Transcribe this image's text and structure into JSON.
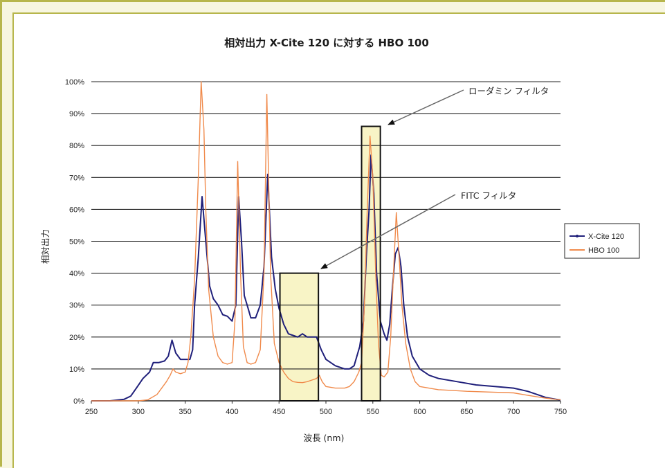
{
  "chart_data": {
    "type": "line",
    "title": "相対出力 X-Cite 120 に対する HBO 100",
    "xlabel": "波長 (nm)",
    "ylabel": "相対出力",
    "xlim": [
      250,
      750
    ],
    "ylim": [
      0,
      100
    ],
    "x_ticks": [
      "250",
      "300",
      "350",
      "400",
      "450",
      "500",
      "550",
      "600",
      "650",
      "700",
      "750"
    ],
    "y_ticks": [
      "0%",
      "10%",
      "20%",
      "30%",
      "40%",
      "50%",
      "60%",
      "70%",
      "80%",
      "90%",
      "100%"
    ],
    "grid": "horizontal",
    "legend_position": "right",
    "series": [
      {
        "name": "X-Cite 120",
        "color": "#1f1f7a",
        "points": [
          [
            250,
            0
          ],
          [
            270,
            0
          ],
          [
            285,
            0.5
          ],
          [
            292,
            1.5
          ],
          [
            298,
            4
          ],
          [
            305,
            7
          ],
          [
            312,
            9
          ],
          [
            316,
            12
          ],
          [
            322,
            12
          ],
          [
            328,
            12.5
          ],
          [
            332,
            14
          ],
          [
            336,
            19
          ],
          [
            340,
            15
          ],
          [
            345,
            13
          ],
          [
            350,
            13
          ],
          [
            355,
            13
          ],
          [
            358,
            16
          ],
          [
            360,
            30
          ],
          [
            364,
            45
          ],
          [
            368,
            64
          ],
          [
            372,
            50
          ],
          [
            376,
            36
          ],
          [
            380,
            32
          ],
          [
            385,
            30
          ],
          [
            390,
            27
          ],
          [
            395,
            26.5
          ],
          [
            400,
            25
          ],
          [
            404,
            30
          ],
          [
            407,
            64
          ],
          [
            410,
            50
          ],
          [
            413,
            33
          ],
          [
            417,
            29
          ],
          [
            420,
            26
          ],
          [
            425,
            26
          ],
          [
            430,
            30
          ],
          [
            434,
            42
          ],
          [
            438,
            71
          ],
          [
            442,
            45
          ],
          [
            446,
            35
          ],
          [
            450,
            29
          ],
          [
            455,
            24
          ],
          [
            460,
            21
          ],
          [
            465,
            20.5
          ],
          [
            470,
            20
          ],
          [
            475,
            21
          ],
          [
            480,
            20
          ],
          [
            485,
            20
          ],
          [
            490,
            20
          ],
          [
            495,
            16
          ],
          [
            500,
            13
          ],
          [
            505,
            12
          ],
          [
            510,
            11
          ],
          [
            515,
            10.5
          ],
          [
            520,
            10
          ],
          [
            525,
            10
          ],
          [
            530,
            11
          ],
          [
            536,
            17
          ],
          [
            540,
            25
          ],
          [
            543,
            45
          ],
          [
            546,
            60
          ],
          [
            548,
            77
          ],
          [
            551,
            65
          ],
          [
            554,
            40
          ],
          [
            558,
            25
          ],
          [
            562,
            21
          ],
          [
            565,
            19
          ],
          [
            568,
            24
          ],
          [
            571,
            36
          ],
          [
            574,
            46
          ],
          [
            577,
            48
          ],
          [
            580,
            42
          ],
          [
            583,
            30
          ],
          [
            587,
            20
          ],
          [
            592,
            14
          ],
          [
            600,
            10
          ],
          [
            610,
            8
          ],
          [
            620,
            7
          ],
          [
            640,
            6
          ],
          [
            660,
            5
          ],
          [
            680,
            4.5
          ],
          [
            700,
            4
          ],
          [
            715,
            3
          ],
          [
            725,
            2
          ],
          [
            735,
            1
          ],
          [
            745,
            0.5
          ],
          [
            750,
            0.3
          ]
        ]
      },
      {
        "name": "HBO 100",
        "color": "#f08a4b",
        "points": [
          [
            250,
            0
          ],
          [
            300,
            0
          ],
          [
            310,
            0.3
          ],
          [
            320,
            2
          ],
          [
            325,
            4
          ],
          [
            330,
            6
          ],
          [
            334,
            8
          ],
          [
            337,
            10
          ],
          [
            340,
            9
          ],
          [
            345,
            8.5
          ],
          [
            350,
            9
          ],
          [
            353,
            12
          ],
          [
            356,
            20
          ],
          [
            360,
            38
          ],
          [
            364,
            70
          ],
          [
            367,
            100
          ],
          [
            370,
            85
          ],
          [
            372,
            60
          ],
          [
            375,
            35
          ],
          [
            380,
            20
          ],
          [
            385,
            14
          ],
          [
            390,
            12
          ],
          [
            395,
            11.5
          ],
          [
            400,
            12
          ],
          [
            403,
            25
          ],
          [
            406,
            75
          ],
          [
            409,
            40
          ],
          [
            412,
            17
          ],
          [
            416,
            12
          ],
          [
            420,
            11.5
          ],
          [
            425,
            12
          ],
          [
            430,
            16
          ],
          [
            434,
            40
          ],
          [
            437,
            96
          ],
          [
            441,
            40
          ],
          [
            445,
            18
          ],
          [
            450,
            12
          ],
          [
            455,
            9
          ],
          [
            460,
            7
          ],
          [
            465,
            6
          ],
          [
            470,
            5.8
          ],
          [
            475,
            5.7
          ],
          [
            480,
            6
          ],
          [
            485,
            6.5
          ],
          [
            490,
            7
          ],
          [
            493,
            8
          ],
          [
            496,
            6
          ],
          [
            500,
            4.5
          ],
          [
            510,
            4
          ],
          [
            520,
            4
          ],
          [
            525,
            4.5
          ],
          [
            530,
            6
          ],
          [
            535,
            9
          ],
          [
            538,
            12
          ],
          [
            541,
            30
          ],
          [
            544,
            60
          ],
          [
            547,
            83
          ],
          [
            550,
            70
          ],
          [
            553,
            40
          ],
          [
            556,
            18
          ],
          [
            559,
            8
          ],
          [
            562,
            7.5
          ],
          [
            566,
            9
          ],
          [
            569,
            20
          ],
          [
            572,
            40
          ],
          [
            575,
            59
          ],
          [
            578,
            45
          ],
          [
            581,
            30
          ],
          [
            585,
            18
          ],
          [
            590,
            10
          ],
          [
            595,
            6
          ],
          [
            600,
            4.5
          ],
          [
            620,
            3.5
          ],
          [
            650,
            3
          ],
          [
            700,
            2.5
          ],
          [
            720,
            1.5
          ],
          [
            735,
            0.8
          ],
          [
            750,
            0.3
          ]
        ]
      }
    ],
    "annotations": [
      {
        "text": "ローダミン フィルタ",
        "box_nm": [
          538,
          558
        ],
        "box_pct": [
          0,
          86
        ]
      },
      {
        "text": "FITC フィルタ",
        "box_nm": [
          451,
          492
        ],
        "box_pct": [
          0,
          40
        ]
      }
    ],
    "highlight_color": "#f8f4c6"
  }
}
